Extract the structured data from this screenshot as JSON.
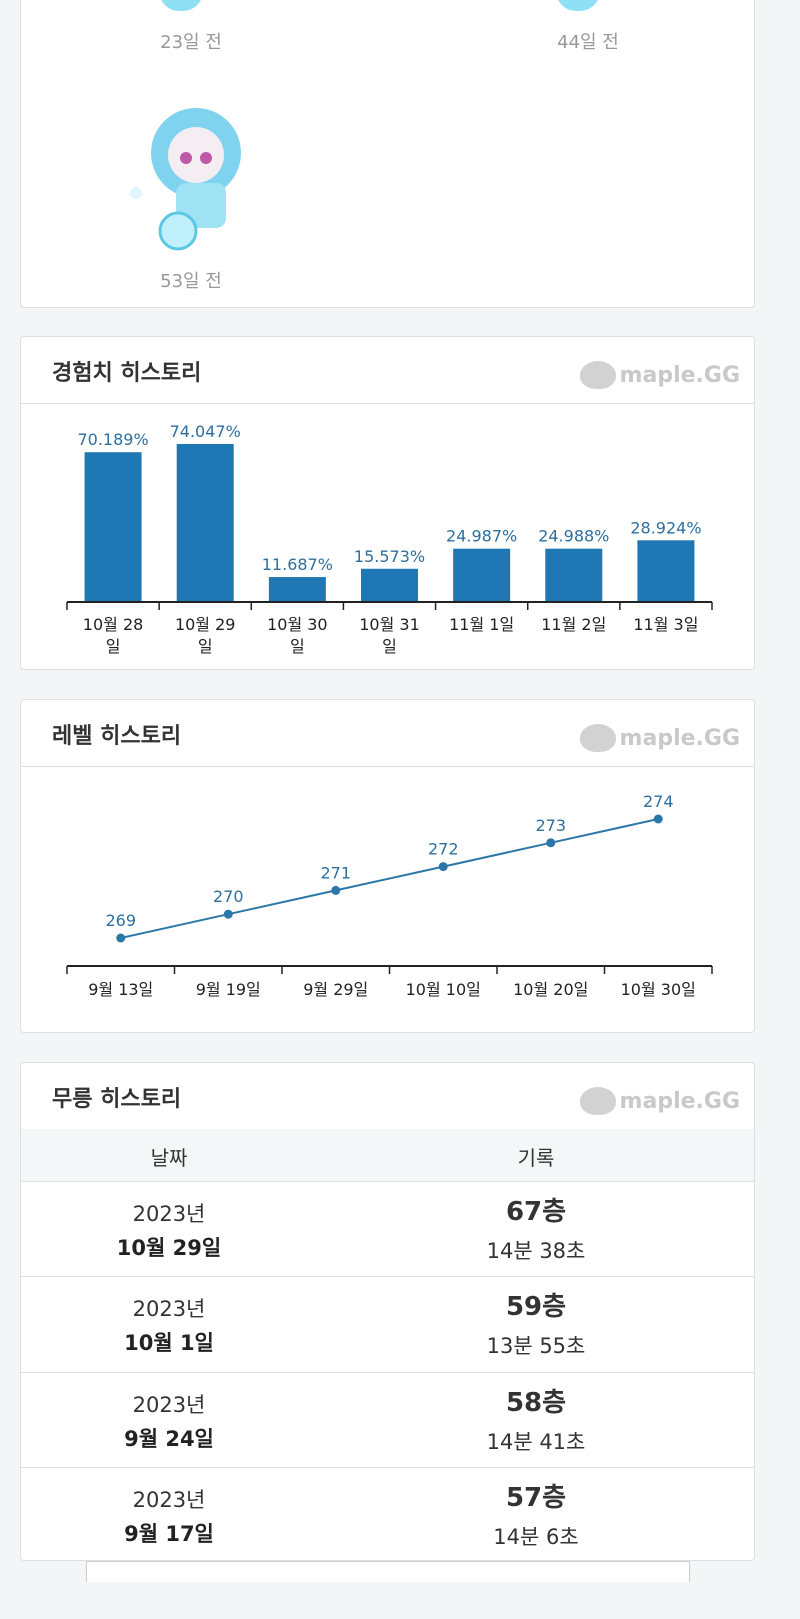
{
  "avatars": [
    {
      "label": "23일 전"
    },
    {
      "label": "44일 전"
    },
    {
      "label": "53일 전"
    }
  ],
  "logo": "maple.GG",
  "chart_data": [
    {
      "type": "bar",
      "title": "경험치 히스토리",
      "categories": [
        "10월 28일",
        "10월 29일",
        "10월 30일",
        "10월 31일",
        "11월 1일",
        "11월 2일",
        "11월 3일"
      ],
      "values": [
        70.189,
        74.047,
        11.687,
        15.573,
        24.987,
        24.988,
        28.924
      ],
      "value_labels": [
        "70.189%",
        "74.047%",
        "11.687%",
        "15.573%",
        "24.987%",
        "24.988%",
        "28.924%"
      ],
      "color": "#1f77b4"
    },
    {
      "type": "line",
      "title": "레벨 히스토리",
      "categories": [
        "9월 13일",
        "9월 19일",
        "9월 29일",
        "10월 10일",
        "10월 20일",
        "10월 30일"
      ],
      "values": [
        269,
        270,
        271,
        272,
        273,
        274
      ],
      "color": "#2a77a8"
    }
  ],
  "table": {
    "title": "무릉 히스토리",
    "header": [
      "날짜",
      "기록"
    ],
    "rows": [
      {
        "year": "2023년",
        "date": "10월 29일",
        "floor": "67층",
        "time": "14분 38초"
      },
      {
        "year": "2023년",
        "date": "10월 1일",
        "floor": "59층",
        "time": "13분 55초"
      },
      {
        "year": "2023년",
        "date": "9월 24일",
        "floor": "58층",
        "time": "14분 41초"
      },
      {
        "year": "2023년",
        "date": "9월 17일",
        "floor": "57층",
        "time": "14분 6초"
      }
    ]
  }
}
